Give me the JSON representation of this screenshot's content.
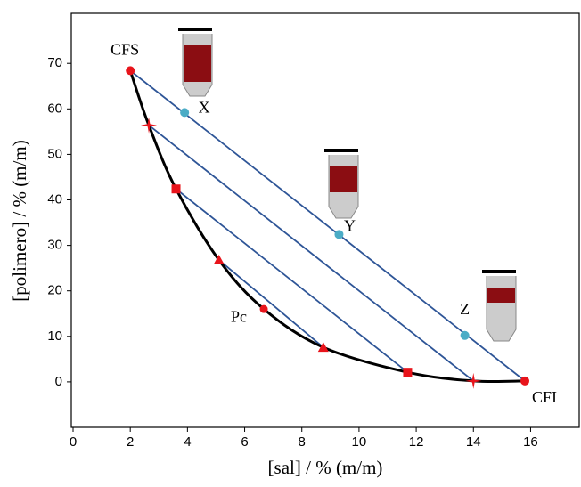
{
  "chart_data": {
    "type": "line",
    "xlabel": "[sal]  /  % (m/m)",
    "ylabel": "[polimero]  /  % (m/m)",
    "xlim": [
      0,
      17.7
    ],
    "ylim": [
      -10,
      81
    ],
    "xticks": [
      0,
      2,
      4,
      6,
      8,
      10,
      12,
      14,
      16
    ],
    "yticks": [
      0,
      10,
      20,
      30,
      40,
      50,
      60,
      70
    ],
    "binodal": {
      "color": "#000000",
      "x": [
        2,
        2.65,
        3.6,
        5.1,
        6.67,
        8.75,
        11.7,
        14,
        15.8
      ],
      "y": [
        68.4,
        56.4,
        42.4,
        26.8,
        16,
        7.6,
        2.1,
        0.2,
        0.2
      ]
    },
    "tie_line_color": "#2e5597",
    "marker_color": "#e8141b",
    "tie_lines": [
      {
        "marker": "circle",
        "x": [
          2,
          15.8
        ],
        "y": [
          68.4,
          0.2
        ]
      },
      {
        "marker": "star",
        "x": [
          2.65,
          14
        ],
        "y": [
          56.4,
          0.2
        ]
      },
      {
        "marker": "square",
        "x": [
          3.6,
          11.7
        ],
        "y": [
          42.4,
          2.1
        ]
      },
      {
        "marker": "triangle",
        "x": [
          5.1,
          8.75
        ],
        "y": [
          26.8,
          7.6
        ]
      }
    ],
    "mixtures": {
      "color": "#4bacc6",
      "labels": [
        "X",
        "Y",
        "Z"
      ],
      "x": [
        3.9,
        9.3,
        13.7
      ],
      "y": [
        59.2,
        32.4,
        10.2
      ]
    },
    "critical_point": {
      "label": "Pc",
      "x": 6.67,
      "y": 16
    },
    "top_phase_label": "CFS",
    "bottom_phase_label": "CFI"
  }
}
